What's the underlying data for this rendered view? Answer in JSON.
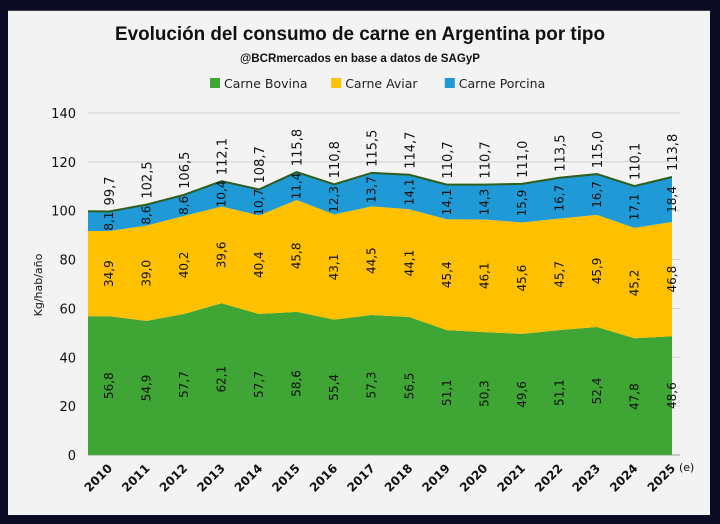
{
  "chart_data": {
    "type": "area",
    "stacked": true,
    "title": "Evolución del consumo de carne en Argentina por tipo",
    "subtitle": "@BCRmercados en base a datos de SAGyP",
    "ylabel": "Kg/hab/año",
    "xlabel": "",
    "ylim": [
      0,
      140
    ],
    "yticks": [
      0,
      20,
      40,
      60,
      80,
      100,
      120,
      140
    ],
    "grid": true,
    "legend": "top",
    "categories": [
      "2010",
      "2011",
      "2012",
      "2013",
      "2014",
      "2015",
      "2016",
      "2017",
      "2018",
      "2019",
      "2020",
      "2021",
      "2022",
      "2023",
      "2024",
      "2025"
    ],
    "x_annotation": "(e)",
    "series": [
      {
        "name": "Carne Bovina",
        "color": "#3fa535",
        "values": [
          56.8,
          54.9,
          57.7,
          62.1,
          57.7,
          58.6,
          55.4,
          57.3,
          56.5,
          51.1,
          50.3,
          49.6,
          51.1,
          52.4,
          47.8,
          48.6
        ],
        "labels": [
          "56,8",
          "54,9",
          "57,7",
          "62,1",
          "57,7",
          "58,6",
          "55,4",
          "57,3",
          "56,5",
          "51,1",
          "50,3",
          "49,6",
          "51,1",
          "52,4",
          "47,8",
          "48,6"
        ]
      },
      {
        "name": "Carne Aviar",
        "color": "#ffc000",
        "values": [
          34.9,
          39.0,
          40.2,
          39.6,
          40.4,
          45.8,
          43.1,
          44.5,
          44.1,
          45.4,
          46.1,
          45.6,
          45.7,
          45.9,
          45.2,
          46.8
        ],
        "labels": [
          "34,9",
          "39,0",
          "40,2",
          "39,6",
          "40,4",
          "45,8",
          "43,1",
          "44,5",
          "44,1",
          "45,4",
          "46,1",
          "45,6",
          "45,7",
          "45,9",
          "45,2",
          "46,8"
        ]
      },
      {
        "name": "Carne Porcina",
        "color": "#1f9ad6",
        "values": [
          8.1,
          8.6,
          8.6,
          10.4,
          10.7,
          11.4,
          12.3,
          13.7,
          14.1,
          14.1,
          14.3,
          15.9,
          16.7,
          16.7,
          17.1,
          18.4
        ],
        "labels": [
          "8,1",
          "8,6",
          "8,6",
          "10,4",
          "10,7",
          "11,4",
          "12,3",
          "13,7",
          "14,1",
          "14,1",
          "14,3",
          "15,9",
          "16,7",
          "16,7",
          "17,1",
          "18,4"
        ]
      }
    ],
    "totals": [
      99.7,
      102.5,
      106.5,
      112.1,
      108.7,
      115.8,
      110.8,
      115.5,
      114.7,
      110.7,
      110.7,
      111.0,
      113.5,
      115.0,
      110.1,
      113.8
    ],
    "total_labels": [
      "99,7",
      "102,5",
      "106,5",
      "112,1",
      "108,7",
      "115,8",
      "110,8",
      "115,5",
      "114,7",
      "110,7",
      "110,7",
      "111,0",
      "113,5",
      "115,0",
      "110,1",
      "113,8"
    ],
    "total_line_color": "#2e5e1e"
  }
}
